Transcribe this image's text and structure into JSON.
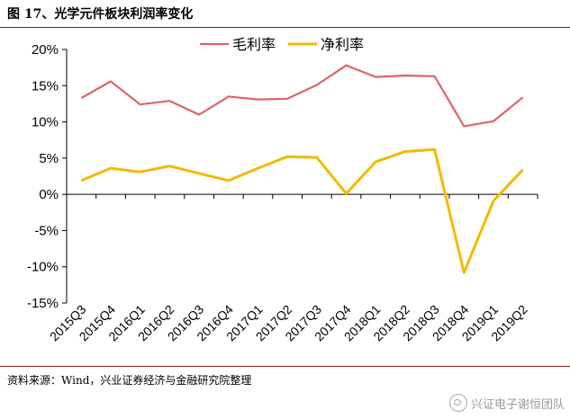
{
  "header": {
    "title": "图 17、光学元件板块利润率变化"
  },
  "footer": {
    "source": "资料来源：Wind，兴业证券经济与金融研究院整理",
    "watermark": "兴证电子谢恒团队"
  },
  "colors": {
    "gross": "#e06369",
    "net": "#f5b800",
    "axis": "#000000",
    "rule": "#8c1c1c"
  },
  "chart_data": {
    "type": "line",
    "title": "",
    "xlabel": "",
    "ylabel": "",
    "categories": [
      "2015Q3",
      "2015Q4",
      "2016Q1",
      "2016Q2",
      "2016Q3",
      "2016Q4",
      "2017Q1",
      "2017Q2",
      "2017Q3",
      "2017Q4",
      "2018Q1",
      "2018Q2",
      "2018Q3",
      "2018Q4",
      "2019Q1",
      "2019Q2"
    ],
    "ylim": [
      -15,
      20
    ],
    "yticks": [
      20,
      15,
      10,
      5,
      0,
      -5,
      -10,
      -15
    ],
    "ytick_labels": [
      "20%",
      "15%",
      "10%",
      "5%",
      "0%",
      "-5%",
      "-10%",
      "-15%"
    ],
    "legend_position": "top-center",
    "grid": false,
    "series": [
      {
        "name": "毛利率",
        "color": "#e06369",
        "values": [
          13.3,
          15.6,
          12.4,
          12.9,
          11.0,
          13.5,
          13.1,
          13.2,
          15.1,
          17.8,
          16.2,
          16.4,
          16.3,
          9.4,
          10.1,
          13.4
        ]
      },
      {
        "name": "净利率",
        "color": "#f5b800",
        "values": [
          1.9,
          3.6,
          3.1,
          3.9,
          2.9,
          1.9,
          3.6,
          5.2,
          5.1,
          0.1,
          4.5,
          5.9,
          6.2,
          -10.8,
          -0.9,
          3.4
        ]
      }
    ]
  }
}
